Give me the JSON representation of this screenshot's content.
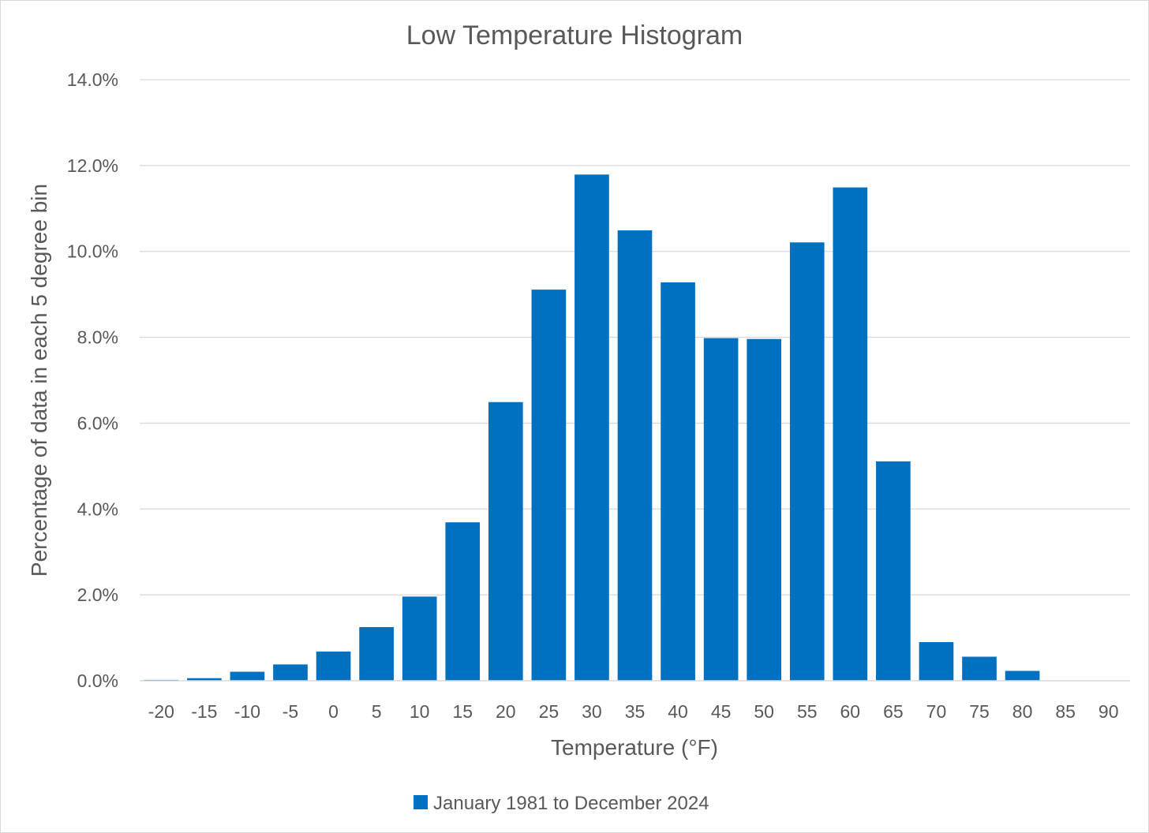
{
  "colors": {
    "bar": "#0070c0",
    "text": "#595959",
    "grid": "#d9d9d9"
  },
  "chart_data": {
    "type": "bar",
    "title": "Low Temperature Histogram",
    "xlabel": "Temperature (°F)",
    "ylabel": "Percentage of data in each 5 degree bin",
    "categories": [
      "-20",
      "-15",
      "-10",
      "-5",
      "0",
      "5",
      "10",
      "15",
      "20",
      "25",
      "30",
      "35",
      "40",
      "45",
      "50",
      "55",
      "60",
      "65",
      "70",
      "75",
      "80",
      "85",
      "90"
    ],
    "series": [
      {
        "name": "January 1981 to December 2024",
        "values": [
          0.02,
          0.06,
          0.21,
          0.38,
          0.68,
          1.25,
          1.96,
          3.69,
          6.49,
          9.11,
          11.79,
          10.49,
          9.28,
          7.98,
          7.96,
          10.21,
          11.49,
          5.11,
          0.9,
          0.56,
          0.23,
          0.0,
          0.0
        ]
      }
    ],
    "ylim": [
      0,
      14
    ],
    "yticks": [
      0,
      2,
      4,
      6,
      8,
      10,
      12,
      14
    ],
    "ytick_labels": [
      "0.0%",
      "2.0%",
      "4.0%",
      "6.0%",
      "8.0%",
      "10.0%",
      "12.0%",
      "14.0%"
    ],
    "grid": true,
    "legend_position": "bottom"
  }
}
